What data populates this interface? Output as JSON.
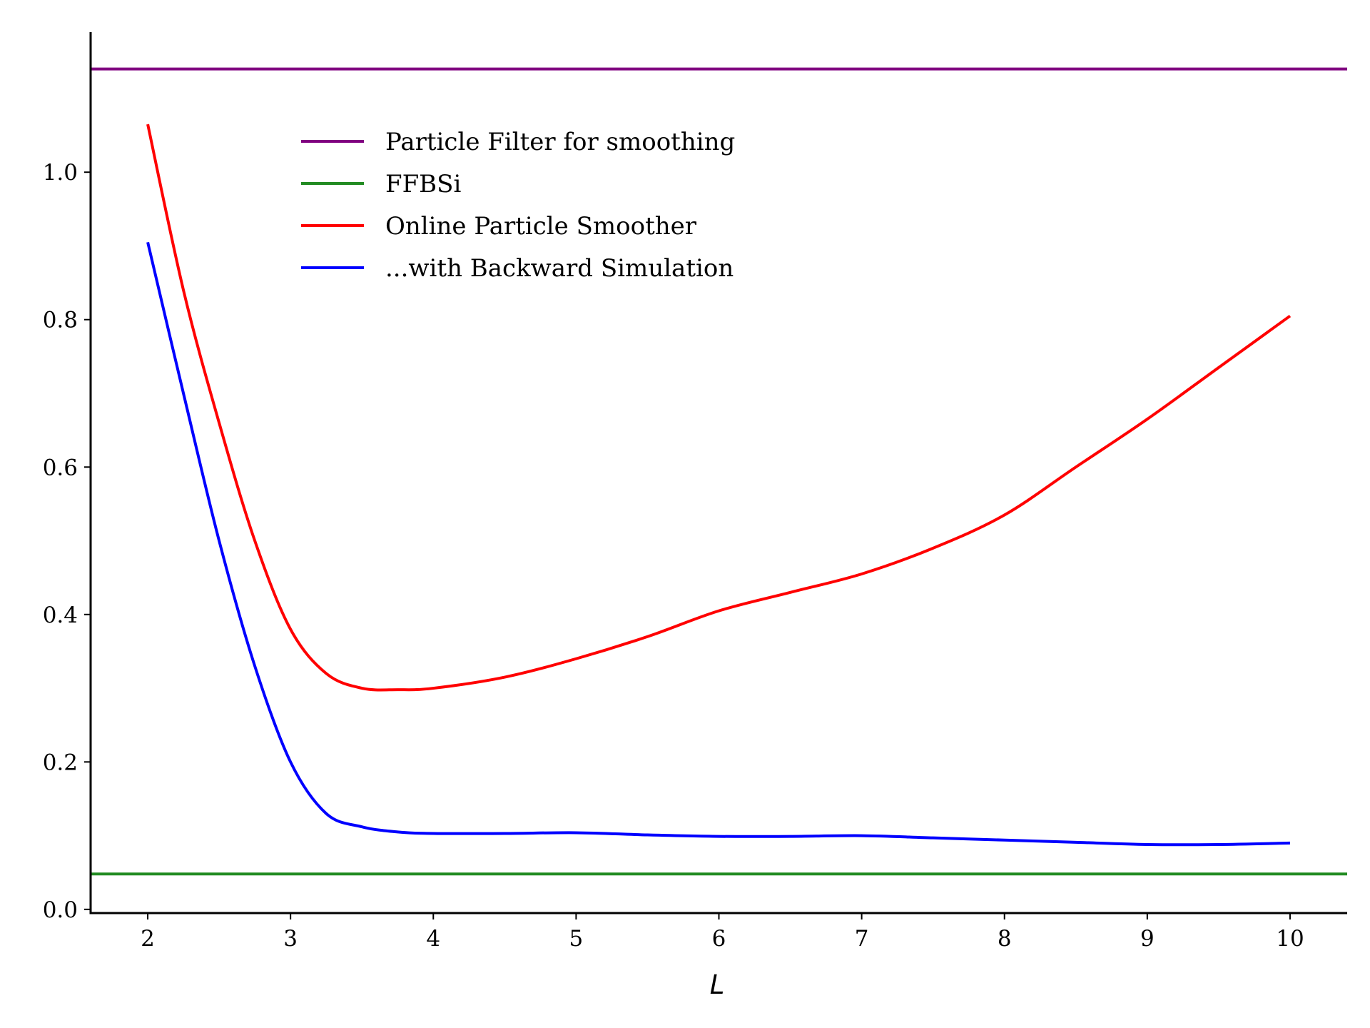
{
  "chart_data": {
    "type": "line",
    "xlabel": "L",
    "ylabel": "",
    "xlim": [
      1.6,
      10.4
    ],
    "ylim": [
      -0.005,
      1.19
    ],
    "xticks": [
      2,
      3,
      4,
      5,
      6,
      7,
      8,
      9,
      10
    ],
    "yticks": [
      0.0,
      0.2,
      0.4,
      0.6,
      0.8,
      1.0
    ],
    "xtick_labels": [
      "2",
      "3",
      "4",
      "5",
      "6",
      "7",
      "8",
      "9",
      "10"
    ],
    "ytick_labels": [
      "0.0",
      "0.2",
      "0.4",
      "0.6",
      "0.8",
      "1.0"
    ],
    "grid": false,
    "legend_position": "upper-left",
    "series": [
      {
        "name": "Particle Filter for smoothing",
        "color": "#800080",
        "x": [
          1.6,
          10.4
        ],
        "y": [
          1.14,
          1.14
        ]
      },
      {
        "name": "FFBSi",
        "color": "#228b22",
        "x": [
          1.6,
          10.4
        ],
        "y": [
          0.048,
          0.048
        ]
      },
      {
        "name": "Online Particle Smoother",
        "color": "#ff0000",
        "x": [
          2.0,
          2.25,
          2.5,
          2.75,
          3.0,
          3.25,
          3.5,
          3.75,
          4.0,
          4.5,
          5.0,
          5.5,
          6.0,
          6.5,
          7.0,
          7.5,
          8.0,
          8.5,
          9.0,
          9.5,
          10.0
        ],
        "y": [
          1.065,
          0.84,
          0.66,
          0.5,
          0.38,
          0.32,
          0.3,
          0.298,
          0.3,
          0.315,
          0.34,
          0.37,
          0.405,
          0.43,
          0.455,
          0.49,
          0.535,
          0.6,
          0.665,
          0.735,
          0.805
        ]
      },
      {
        "name": "...with Backward Simulation",
        "color": "#0000ff",
        "x": [
          2.0,
          2.25,
          2.5,
          2.75,
          3.0,
          3.25,
          3.5,
          3.75,
          4.0,
          4.5,
          5.0,
          5.5,
          6.0,
          6.5,
          7.0,
          7.5,
          8.0,
          8.5,
          9.0,
          9.5,
          10.0
        ],
        "y": [
          0.905,
          0.7,
          0.5,
          0.33,
          0.2,
          0.13,
          0.112,
          0.105,
          0.103,
          0.103,
          0.104,
          0.101,
          0.099,
          0.099,
          0.1,
          0.097,
          0.094,
          0.091,
          0.088,
          0.088,
          0.09
        ]
      }
    ]
  }
}
